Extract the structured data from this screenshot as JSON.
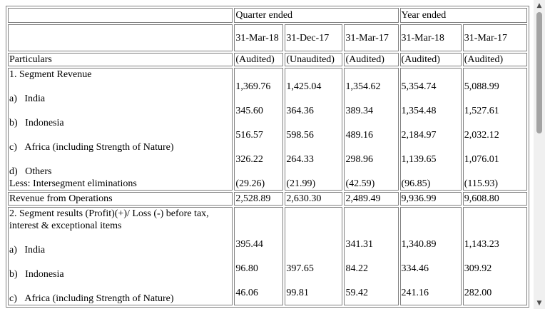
{
  "headers": {
    "quarter_ended": "Quarter ended",
    "year_ended": "Year ended",
    "dates": [
      "31-Mar-18",
      "31-Dec-17",
      "31-Mar-17",
      "31-Mar-18",
      "31-Mar-17"
    ],
    "particulars": "Particulars",
    "audit_status": [
      "(Audited)",
      "(Unaudited)",
      "(Audited)",
      "(Audited)",
      "(Audited)"
    ]
  },
  "segment_revenue": {
    "title": "1. Segment Revenue",
    "items": [
      {
        "label": "a)   India",
        "values": [
          "1,369.76",
          "1,425.04",
          "1,354.62",
          "5,354.74",
          "5,088.99"
        ]
      },
      {
        "label": "b)   Indonesia",
        "values": [
          "345.60",
          "364.36",
          "389.34",
          "1,354.48",
          "1,527.61"
        ]
      },
      {
        "label": "c)   Africa (including Strength of Nature)",
        "values": [
          "516.57",
          "598.56",
          "489.16",
          "2,184.97",
          "2,032.12"
        ]
      },
      {
        "label": "d)   Others",
        "values": [
          "326.22",
          "264.33",
          "298.96",
          "1,139.65",
          "1,076.01"
        ]
      }
    ],
    "elimination": {
      "label": "Less: Intersegment eliminations",
      "values": [
        "(29.26)",
        "(21.99)",
        "(42.59)",
        "(96.85)",
        "(115.93)"
      ]
    }
  },
  "revenue_from_operations": {
    "label": "Revenue from Operations",
    "values": [
      "2,528.89",
      "2,630.30",
      "2,489.49",
      "9,936.99",
      "9,608.80"
    ]
  },
  "segment_results": {
    "title": "2. Segment results (Profit)(+)/ Loss (-) before tax, interest & exceptional items",
    "items": [
      {
        "label": "a)   India",
        "values": [
          "395.44",
          "",
          "341.31",
          "1,340.89",
          "1,143.23"
        ]
      },
      {
        "label": "b)   Indonesia",
        "values": [
          "96.80",
          "397.65",
          "84.22",
          "334.46",
          "309.92"
        ]
      },
      {
        "label": "c)   Africa (including Strength of Nature)",
        "values": [
          "46.06",
          "99.81",
          "59.42",
          "241.16",
          "282.00"
        ]
      }
    ]
  }
}
